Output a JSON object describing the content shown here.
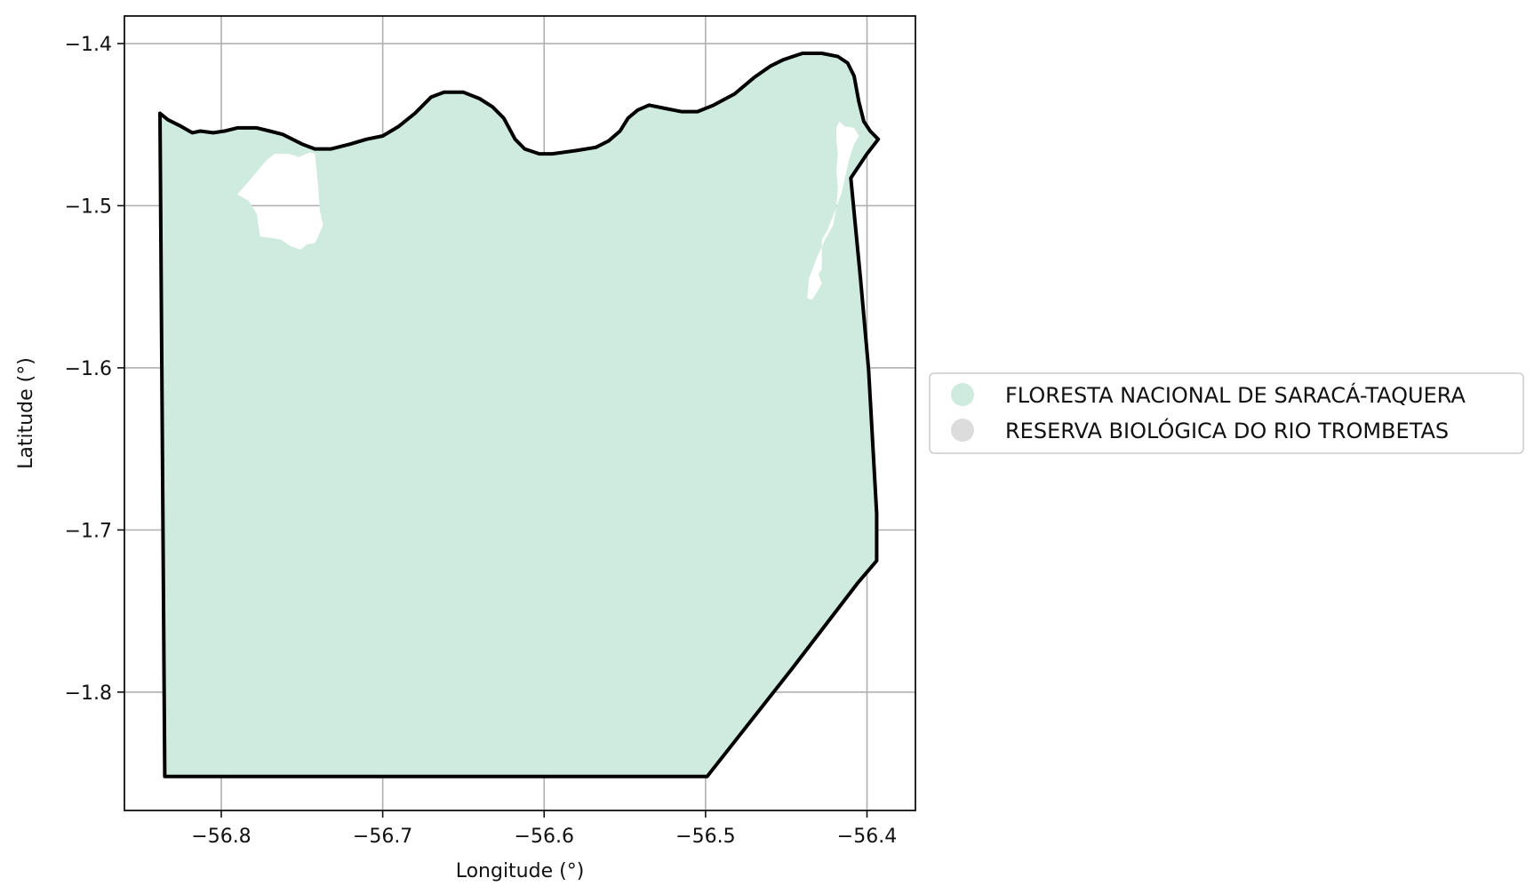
{
  "chart_data": {
    "type": "map",
    "title": "",
    "xlabel": "Longitude (°)",
    "ylabel": "Latitude (°)",
    "xlim": [
      -56.86,
      -56.37
    ],
    "ylim": [
      -1.873,
      -1.383
    ],
    "grid": true,
    "legend_position": "center-right",
    "x_ticks": [
      {
        "value": -56.8,
        "label": "−56.8"
      },
      {
        "value": -56.7,
        "label": "−56.7"
      },
      {
        "value": -56.6,
        "label": "−56.6"
      },
      {
        "value": -56.5,
        "label": "−56.5"
      },
      {
        "value": -56.4,
        "label": "−56.4"
      }
    ],
    "y_ticks": [
      {
        "value": -1.4,
        "label": "−1.4"
      },
      {
        "value": -1.5,
        "label": "−1.5"
      },
      {
        "value": -1.6,
        "label": "−1.6"
      },
      {
        "value": -1.7,
        "label": "−1.7"
      },
      {
        "value": -1.8,
        "label": "−1.8"
      }
    ],
    "series": [
      {
        "name": "FLORESTA NACIONAL DE SARACÁ-TAQUERA",
        "color": "#cfebdf",
        "outline": [
          [
            -56.838,
            -1.443
          ],
          [
            -56.833,
            -1.447
          ],
          [
            -56.825,
            -1.451
          ],
          [
            -56.818,
            -1.455
          ],
          [
            -56.813,
            -1.454
          ],
          [
            -56.805,
            -1.455
          ],
          [
            -56.798,
            -1.454
          ],
          [
            -56.79,
            -1.452
          ],
          [
            -56.778,
            -1.452
          ],
          [
            -56.77,
            -1.454
          ],
          [
            -56.762,
            -1.456
          ],
          [
            -56.75,
            -1.462
          ],
          [
            -56.742,
            -1.465
          ],
          [
            -56.732,
            -1.465
          ],
          [
            -56.72,
            -1.462
          ],
          [
            -56.71,
            -1.459
          ],
          [
            -56.7,
            -1.457
          ],
          [
            -56.69,
            -1.451
          ],
          [
            -56.68,
            -1.443
          ],
          [
            -56.67,
            -1.433
          ],
          [
            -56.662,
            -1.43
          ],
          [
            -56.65,
            -1.43
          ],
          [
            -56.64,
            -1.434
          ],
          [
            -56.632,
            -1.439
          ],
          [
            -56.625,
            -1.446
          ],
          [
            -56.618,
            -1.459
          ],
          [
            -56.612,
            -1.465
          ],
          [
            -56.603,
            -1.468
          ],
          [
            -56.595,
            -1.468
          ],
          [
            -56.58,
            -1.466
          ],
          [
            -56.568,
            -1.464
          ],
          [
            -56.56,
            -1.46
          ],
          [
            -56.553,
            -1.454
          ],
          [
            -56.548,
            -1.446
          ],
          [
            -56.542,
            -1.441
          ],
          [
            -56.535,
            -1.438
          ],
          [
            -56.525,
            -1.44
          ],
          [
            -56.515,
            -1.442
          ],
          [
            -56.505,
            -1.442
          ],
          [
            -56.495,
            -1.438
          ],
          [
            -56.482,
            -1.431
          ],
          [
            -56.47,
            -1.421
          ],
          [
            -56.46,
            -1.414
          ],
          [
            -56.452,
            -1.41
          ],
          [
            -56.44,
            -1.406
          ],
          [
            -56.428,
            -1.406
          ],
          [
            -56.418,
            -1.408
          ],
          [
            -56.412,
            -1.412
          ],
          [
            -56.408,
            -1.42
          ],
          [
            -56.405,
            -1.436
          ],
          [
            -56.402,
            -1.448
          ],
          [
            -56.398,
            -1.454
          ],
          [
            -56.393,
            -1.459
          ],
          [
            -56.4,
            -1.468
          ],
          [
            -56.41,
            -1.483
          ],
          [
            -56.404,
            -1.545
          ],
          [
            -56.399,
            -1.601
          ],
          [
            -56.394,
            -1.69
          ],
          [
            -56.394,
            -1.719
          ],
          [
            -56.406,
            -1.733
          ],
          [
            -56.446,
            -1.785
          ],
          [
            -56.499,
            -1.852
          ],
          [
            -56.835,
            -1.852
          ],
          [
            -56.838,
            -1.443
          ]
        ],
        "holes": [
          [
            [
              -56.767,
              -1.468
            ],
            [
              -56.758,
              -1.468
            ],
            [
              -56.752,
              -1.47
            ],
            [
              -56.745,
              -1.467
            ],
            [
              -56.742,
              -1.468
            ],
            [
              -56.74,
              -1.488
            ],
            [
              -56.739,
              -1.503
            ],
            [
              -56.737,
              -1.512
            ],
            [
              -56.74,
              -1.519
            ],
            [
              -56.742,
              -1.523
            ],
            [
              -56.747,
              -1.524
            ],
            [
              -56.751,
              -1.527
            ],
            [
              -56.757,
              -1.525
            ],
            [
              -56.763,
              -1.521
            ],
            [
              -56.768,
              -1.52
            ],
            [
              -56.776,
              -1.519
            ],
            [
              -56.778,
              -1.505
            ],
            [
              -56.783,
              -1.497
            ],
            [
              -56.79,
              -1.493
            ],
            [
              -56.783,
              -1.485
            ],
            [
              -56.777,
              -1.478
            ],
            [
              -56.772,
              -1.472
            ]
          ],
          [
            [
              -56.417,
              -1.448
            ],
            [
              -56.414,
              -1.451
            ],
            [
              -56.408,
              -1.452
            ],
            [
              -56.405,
              -1.457
            ],
            [
              -56.408,
              -1.462
            ],
            [
              -56.411,
              -1.471
            ],
            [
              -56.413,
              -1.48
            ],
            [
              -56.416,
              -1.493
            ],
            [
              -56.42,
              -1.504
            ],
            [
              -56.425,
              -1.516
            ],
            [
              -56.428,
              -1.521
            ],
            [
              -56.428,
              -1.539
            ],
            [
              -56.43,
              -1.542
            ],
            [
              -56.428,
              -1.548
            ],
            [
              -56.432,
              -1.555
            ],
            [
              -56.434,
              -1.558
            ],
            [
              -56.437,
              -1.557
            ],
            [
              -56.436,
              -1.545
            ],
            [
              -56.431,
              -1.532
            ],
            [
              -56.426,
              -1.521
            ],
            [
              -56.421,
              -1.512
            ],
            [
              -56.419,
              -1.501
            ],
            [
              -56.418,
              -1.489
            ],
            [
              -56.419,
              -1.478
            ],
            [
              -56.418,
              -1.468
            ],
            [
              -56.419,
              -1.46
            ],
            [
              -56.419,
              -1.452
            ]
          ]
        ]
      },
      {
        "name": "RESERVA BIOLÓGICA DO RIO TROMBETAS",
        "color": "#dcdcdc"
      }
    ]
  }
}
